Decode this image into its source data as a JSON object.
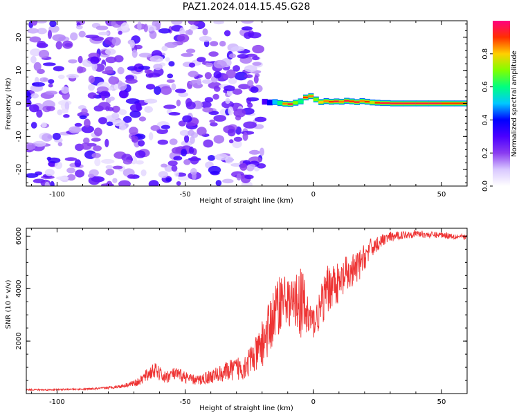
{
  "figure": {
    "title": "PAZ1.2024.014.15.45.G28"
  },
  "chart_data": [
    {
      "type": "heatmap",
      "title": "PAZ1.2024.014.15.45.G28",
      "xlabel": "Height of straight line (km)",
      "ylabel": "Frequency (Hz)",
      "xlim": [
        -112,
        60
      ],
      "ylim": [
        -25,
        25
      ],
      "xticks": [
        -100,
        -50,
        0,
        50
      ],
      "yticks": [
        -20,
        -10,
        0,
        10,
        20
      ],
      "grid": false,
      "colorbar": {
        "label": "Normalized spectral amplitude",
        "ticks": [
          0.0,
          0.2,
          0.4,
          0.6,
          0.8
        ],
        "range": [
          0,
          1
        ],
        "colormap": [
          "#ffffff",
          "#d9c8ff",
          "#8a3cf0",
          "#4b00ff",
          "#0000ff",
          "#00c8ff",
          "#00ff80",
          "#80ff00",
          "#ffd000",
          "#ff3000",
          "#ff0080"
        ]
      },
      "noise_region": {
        "x": [
          -112,
          -20
        ],
        "y": [
          -25,
          25
        ],
        "normalized_amplitude_range": [
          0.05,
          0.35
        ]
      },
      "signal_track": {
        "x": [
          -20,
          -18,
          -16,
          -14,
          -12,
          -10,
          -8,
          -6,
          -4,
          -2,
          0,
          2,
          4,
          6,
          8,
          10,
          12,
          14,
          16,
          18,
          20,
          22,
          24,
          26,
          30,
          35,
          40,
          45,
          50,
          55,
          60
        ],
        "frequency_hz": [
          0.5,
          0.3,
          0.4,
          0.1,
          -0.1,
          -0.2,
          0.2,
          0.6,
          1.8,
          2.2,
          1.2,
          0.4,
          0.7,
          0.5,
          0.6,
          0.5,
          0.8,
          0.6,
          0.4,
          0.7,
          0.5,
          0.3,
          0.2,
          0.1,
          0.0,
          0.0,
          0.0,
          0.0,
          0.0,
          0.0,
          0.0
        ],
        "normalized_amplitude": [
          0.3,
          0.4,
          0.5,
          0.6,
          0.85,
          0.95,
          0.7,
          0.6,
          0.9,
          0.85,
          0.7,
          0.8,
          0.85,
          0.9,
          0.95,
          0.85,
          0.95,
          0.9,
          0.95,
          0.85,
          0.9,
          0.75,
          0.9,
          0.95,
          0.95,
          0.95,
          0.95,
          0.95,
          0.9,
          0.9,
          0.85
        ]
      }
    },
    {
      "type": "line",
      "xlabel": "Height of straight line (km)",
      "ylabel": "SNR (10 * v/v)",
      "xlim": [
        -112,
        60
      ],
      "ylim": [
        0,
        6300
      ],
      "xticks": [
        -100,
        -50,
        0,
        50
      ],
      "yticks": [
        2000,
        4000,
        6000
      ],
      "grid": false,
      "color": "#ee3333",
      "series": [
        {
          "x": [
            -112,
            -105,
            -100,
            -95,
            -90,
            -85,
            -80,
            -75,
            -72,
            -68,
            -65,
            -62,
            -58,
            -55,
            -52,
            -48,
            -45,
            -42,
            -38,
            -35,
            -32,
            -28,
            -25,
            -22,
            -20,
            -18,
            -16,
            -14,
            -12,
            -10,
            -8,
            -6,
            -4,
            -2,
            0,
            2,
            4,
            6,
            8,
            10,
            12,
            15,
            18,
            20,
            22,
            25,
            28,
            30,
            35,
            40,
            45,
            50,
            55,
            60
          ],
          "y": [
            150,
            140,
            150,
            160,
            170,
            180,
            220,
            280,
            350,
            450,
            700,
            900,
            600,
            750,
            700,
            550,
            500,
            600,
            700,
            800,
            900,
            1000,
            1200,
            1500,
            1900,
            2300,
            2800,
            3300,
            3700,
            3500,
            3400,
            3600,
            3300,
            2900,
            2700,
            3000,
            3600,
            4000,
            4300,
            4100,
            4400,
            4600,
            4900,
            5200,
            5500,
            5700,
            5900,
            5950,
            6050,
            6100,
            6050,
            6050,
            6000,
            5950
          ],
          "noise_amplitude": [
            30,
            30,
            30,
            30,
            30,
            40,
            50,
            70,
            90,
            150,
            250,
            300,
            250,
            250,
            250,
            200,
            200,
            250,
            300,
            350,
            400,
            500,
            600,
            700,
            900,
            1000,
            1100,
            1200,
            1000,
            900,
            900,
            1200,
            1500,
            1000,
            600,
            700,
            900,
            1000,
            800,
            800,
            800,
            700,
            600,
            500,
            400,
            300,
            200,
            200,
            150,
            150,
            120,
            120,
            120,
            100
          ]
        }
      ]
    }
  ]
}
